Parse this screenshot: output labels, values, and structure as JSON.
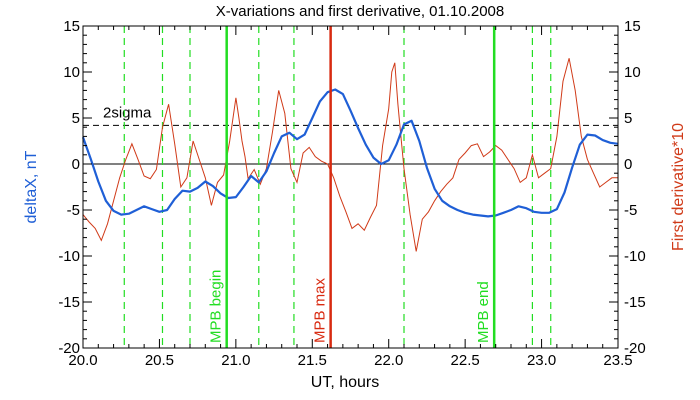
{
  "chart_data": {
    "type": "line",
    "title": "X-variations and first derivative, 01.10.2008",
    "xlabel": "UT, hours",
    "ylabel_left": "deltaX, nT",
    "ylabel_right": "First derivative*10",
    "xlim": [
      20.0,
      23.5
    ],
    "ylim": [
      -20,
      15
    ],
    "x_ticks": [
      "20.0",
      "20.5",
      "21.0",
      "21.5",
      "22.0",
      "22.5",
      "23.0",
      "23.5"
    ],
    "y_ticks": [
      "15",
      "10",
      "5",
      "0",
      "-5",
      "-10",
      "-15",
      "-20"
    ],
    "grid": false,
    "colors": {
      "deltaX": "#1f5fd6",
      "derivative": "#d03a18",
      "green": "#22dd22",
      "red_marker": "#d82a10",
      "axis": "#000000",
      "ylabel_left": "#1f5fd6",
      "ylabel_right": "#d03a18"
    },
    "sigma_line": {
      "label": "2sigma",
      "y": 4.2
    },
    "vertical_markers": [
      {
        "x": 20.94,
        "label": "MPB begin",
        "color": "#22dd22",
        "style": "solid"
      },
      {
        "x": 21.62,
        "label": "MPB max",
        "color": "#d82a10",
        "style": "solid"
      },
      {
        "x": 22.69,
        "label": "MPB end",
        "color": "#22dd22",
        "style": "solid"
      }
    ],
    "dashed_markers": [
      20.27,
      20.52,
      20.7,
      21.15,
      21.38,
      22.1,
      22.94,
      23.06
    ],
    "series": [
      {
        "key": "deltaX",
        "x": [
          20.0,
          20.05,
          20.1,
          20.15,
          20.2,
          20.25,
          20.3,
          20.35,
          20.4,
          20.45,
          20.5,
          20.55,
          20.6,
          20.65,
          20.7,
          20.75,
          20.8,
          20.85,
          20.9,
          20.95,
          21.0,
          21.05,
          21.1,
          21.15,
          21.2,
          21.25,
          21.3,
          21.35,
          21.4,
          21.45,
          21.5,
          21.55,
          21.6,
          21.65,
          21.7,
          21.75,
          21.8,
          21.85,
          21.9,
          21.95,
          22.0,
          22.05,
          22.1,
          22.15,
          22.2,
          22.25,
          22.3,
          22.35,
          22.4,
          22.45,
          22.5,
          22.55,
          22.6,
          22.65,
          22.7,
          22.75,
          22.8,
          22.85,
          22.9,
          22.95,
          23.0,
          23.05,
          23.1,
          23.15,
          23.2,
          23.25,
          23.3,
          23.35,
          23.4,
          23.45,
          23.5
        ],
        "values": [
          2.9,
          0.6,
          -1.9,
          -4.0,
          -5.1,
          -5.5,
          -5.4,
          -5.0,
          -4.6,
          -4.9,
          -5.2,
          -5.0,
          -3.8,
          -2.9,
          -3.0,
          -2.6,
          -1.9,
          -2.4,
          -3.2,
          -3.7,
          -3.6,
          -2.5,
          -1.3,
          -2.0,
          -0.8,
          1.2,
          3.0,
          3.4,
          2.7,
          3.2,
          5.0,
          6.8,
          7.8,
          8.1,
          7.6,
          5.8,
          3.9,
          2.1,
          0.7,
          0.0,
          0.4,
          2.1,
          4.3,
          4.7,
          2.5,
          -0.4,
          -2.7,
          -4.0,
          -4.6,
          -5.0,
          -5.3,
          -5.5,
          -5.6,
          -5.7,
          -5.6,
          -5.3,
          -5.0,
          -4.6,
          -4.8,
          -5.2,
          -5.3,
          -5.3,
          -4.9,
          -3.1,
          -0.4,
          2.1,
          3.2,
          3.1,
          2.6,
          2.3,
          2.2
        ]
      },
      {
        "key": "derivative",
        "x": [
          20.0,
          20.04,
          20.08,
          20.12,
          20.16,
          20.2,
          20.24,
          20.28,
          20.32,
          20.36,
          20.4,
          20.44,
          20.48,
          20.52,
          20.56,
          20.6,
          20.64,
          20.68,
          20.72,
          20.76,
          20.8,
          20.84,
          20.88,
          20.92,
          20.96,
          21.0,
          21.02,
          21.04,
          21.06,
          21.08,
          21.12,
          21.16,
          21.2,
          21.24,
          21.28,
          21.32,
          21.36,
          21.4,
          21.44,
          21.48,
          21.52,
          21.56,
          21.6,
          21.64,
          21.68,
          21.72,
          21.76,
          21.8,
          21.84,
          21.88,
          21.92,
          21.96,
          22.0,
          22.02,
          22.04,
          22.06,
          22.08,
          22.1,
          22.14,
          22.18,
          22.22,
          22.26,
          22.3,
          22.34,
          22.38,
          22.42,
          22.46,
          22.5,
          22.54,
          22.58,
          22.62,
          22.66,
          22.7,
          22.74,
          22.78,
          22.82,
          22.86,
          22.9,
          22.94,
          22.98,
          23.02,
          23.06,
          23.1,
          23.14,
          23.18,
          23.22,
          23.26,
          23.3,
          23.34,
          23.38,
          23.42,
          23.46,
          23.5
        ],
        "values": [
          -5.5,
          -6.3,
          -7.0,
          -8.3,
          -6.5,
          -4.0,
          -1.5,
          0.5,
          2.2,
          0.5,
          -1.3,
          -1.6,
          -0.6,
          4.0,
          6.5,
          2.2,
          -2.5,
          -1.5,
          2.5,
          0.5,
          -1.5,
          -4.5,
          -2.0,
          -1.2,
          2.5,
          7.2,
          5.0,
          2.5,
          0.8,
          -1.6,
          -0.6,
          -2.2,
          -0.5,
          3.5,
          8.0,
          5.5,
          -0.5,
          -2.0,
          1.2,
          1.8,
          0.8,
          0.3,
          0.0,
          -1.5,
          -3.5,
          -5.2,
          -7.0,
          -6.5,
          -7.2,
          -5.8,
          -4.5,
          2.0,
          6.0,
          10.0,
          11.0,
          6.5,
          3.0,
          -0.5,
          -5.5,
          -9.5,
          -6.0,
          -5.2,
          -4.0,
          -3.0,
          -2.2,
          -1.5,
          0.5,
          1.2,
          2.0,
          2.2,
          0.8,
          1.3,
          2.0,
          1.5,
          0.5,
          -0.5,
          -2.0,
          -1.5,
          1.0,
          -1.5,
          -1.0,
          -0.5,
          3.0,
          9.0,
          11.5,
          8.0,
          3.0,
          0.5,
          -1.0,
          -2.5,
          -2.0,
          -1.5,
          -1.5
        ]
      }
    ]
  }
}
